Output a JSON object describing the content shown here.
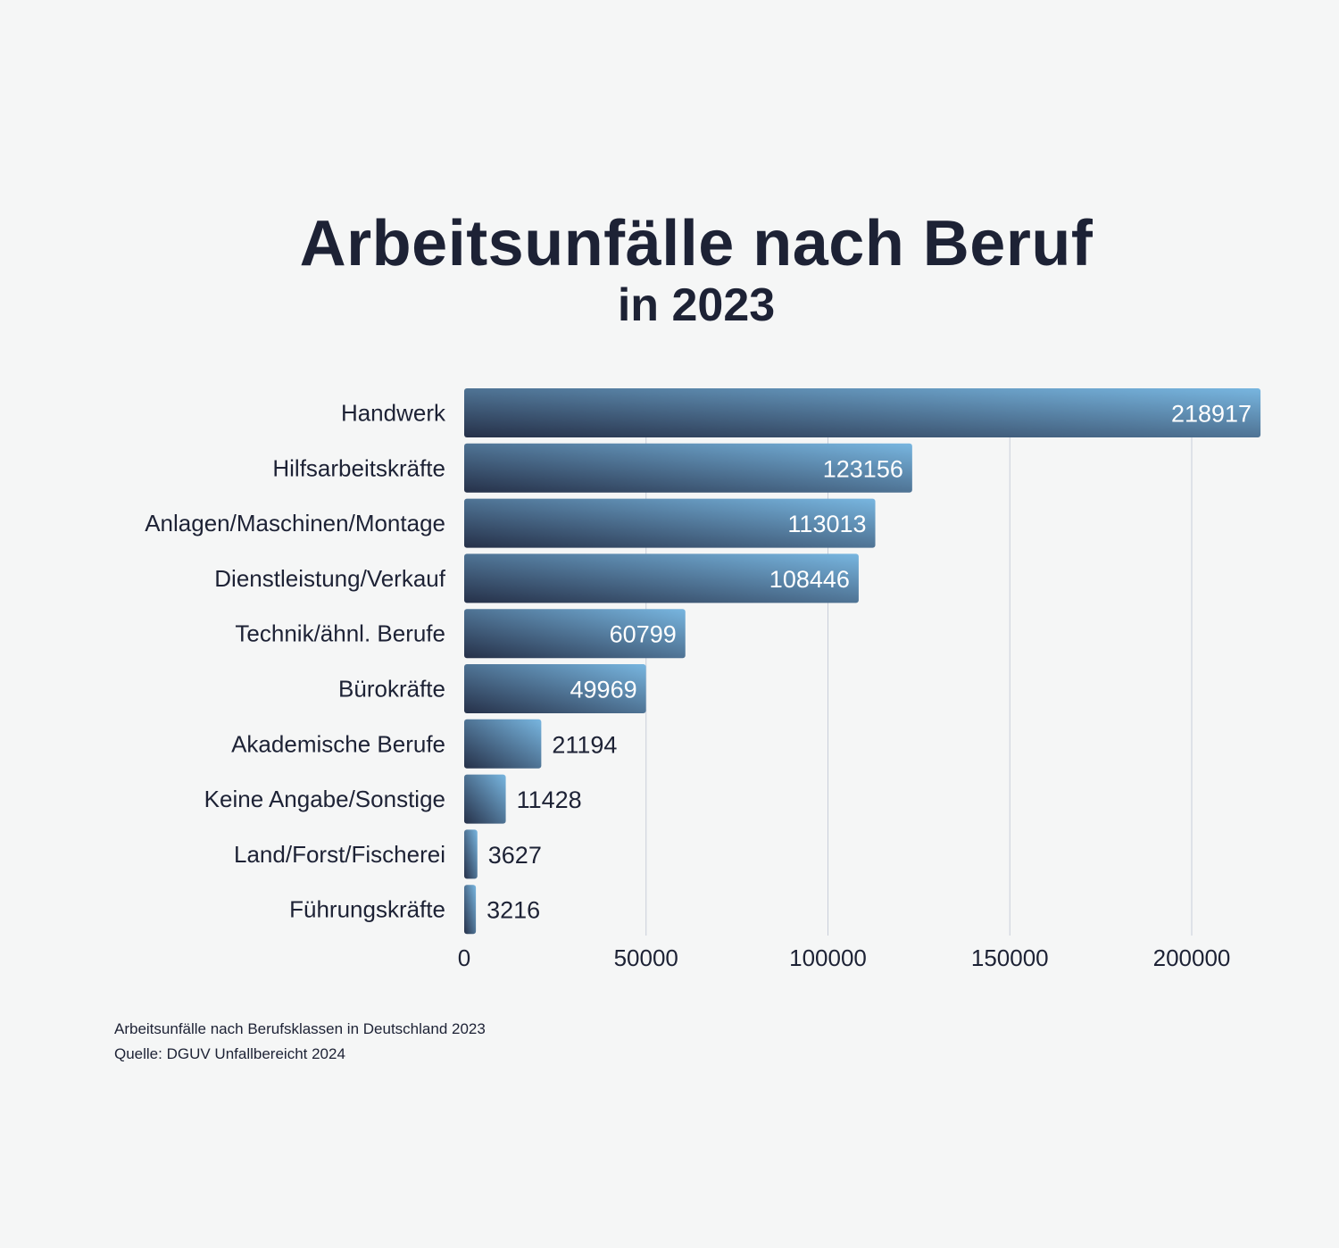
{
  "chart_data": {
    "type": "bar",
    "orientation": "horizontal",
    "title": "Arbeitsunfälle nach Beruf",
    "subtitle": "in 2023",
    "categories": [
      "Handwerk",
      "Hilfsarbeitskräfte",
      "Anlagen/Maschinen/Montage",
      "Dienstleistung/Verkauf",
      "Technik/ähnl. Berufe",
      "Bürokräfte",
      "Akademische Berufe",
      "Keine Angabe/Sonstige",
      "Land/Forst/Fischerei",
      "Führungskräfte"
    ],
    "values": [
      218917,
      123156,
      113013,
      108446,
      60799,
      49969,
      21194,
      11428,
      3627,
      3216
    ],
    "value_labels": [
      "218917",
      "123156",
      "113013",
      "108446",
      "60799",
      "49969",
      "21194",
      "11428",
      "3627",
      "3216"
    ],
    "xlim": [
      0,
      220000
    ],
    "xticks": [
      0,
      50000,
      100000,
      150000,
      200000
    ],
    "xtick_labels": [
      "0",
      "50000",
      "100000",
      "150000",
      "200000"
    ],
    "xlabel": "",
    "ylabel": "",
    "grid": true
  },
  "footnote": {
    "line1": "Arbeitsunfälle nach Berufsklassen in Deutschland 2023",
    "line2": "Quelle: DGUV Unfallbereicht 2024"
  },
  "colors": {
    "bar_dark": "#263149",
    "bar_light": "#78b6e0",
    "text": "#1d2235",
    "grid": "#c8ced9",
    "background": "#f5f6f6"
  }
}
